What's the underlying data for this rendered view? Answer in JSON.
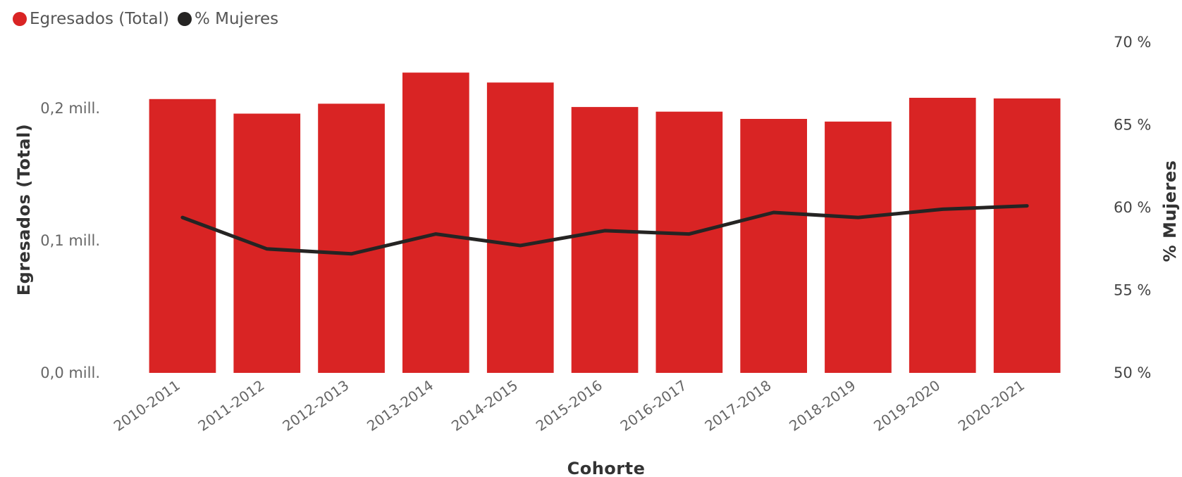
{
  "legend": {
    "items": [
      {
        "label": "Egresados (Total)",
        "color": "#D92424"
      },
      {
        "label": "% Mujeres",
        "color": "#252423"
      }
    ]
  },
  "chart_data": {
    "type": "bar",
    "combo": "bar+line",
    "categories": [
      "2010-2011",
      "2011-2012",
      "2012-2013",
      "2013-2014",
      "2014-2015",
      "2015-2016",
      "2016-2017",
      "2017-2018",
      "2018-2019",
      "2019-2020",
      "2020-2021"
    ],
    "series": [
      {
        "name": "Egresados (Total)",
        "type": "bar",
        "axis": "left",
        "color": "#D92424",
        "values": [
          207000,
          196000,
          203500,
          227000,
          219500,
          201000,
          197500,
          192000,
          190000,
          208000,
          207500
        ]
      },
      {
        "name": "% Mujeres",
        "type": "line",
        "axis": "right",
        "color": "#252423",
        "values": [
          59.4,
          57.5,
          57.2,
          58.4,
          57.7,
          58.6,
          58.4,
          59.7,
          59.4,
          59.9,
          60.1
        ]
      }
    ],
    "xlabel": "Cohorte",
    "ylabel_left": "Egresados (Total)",
    "ylabel_right": "% Mujeres",
    "ylim_left": [
      0,
      250000
    ],
    "ylim_right": [
      50,
      70
    ],
    "yticks_left": [
      {
        "value": 0,
        "label": "0,0 mill."
      },
      {
        "value": 100000,
        "label": "0,1 mill."
      },
      {
        "value": 200000,
        "label": "0,2 mill."
      }
    ],
    "yticks_right": [
      {
        "value": 50,
        "label": "50 %"
      },
      {
        "value": 55,
        "label": "55 %"
      },
      {
        "value": 60,
        "label": "60 %"
      },
      {
        "value": 65,
        "label": "65 %"
      },
      {
        "value": 70,
        "label": "70 %"
      }
    ],
    "legend_position": "top-left",
    "grid": false
  }
}
